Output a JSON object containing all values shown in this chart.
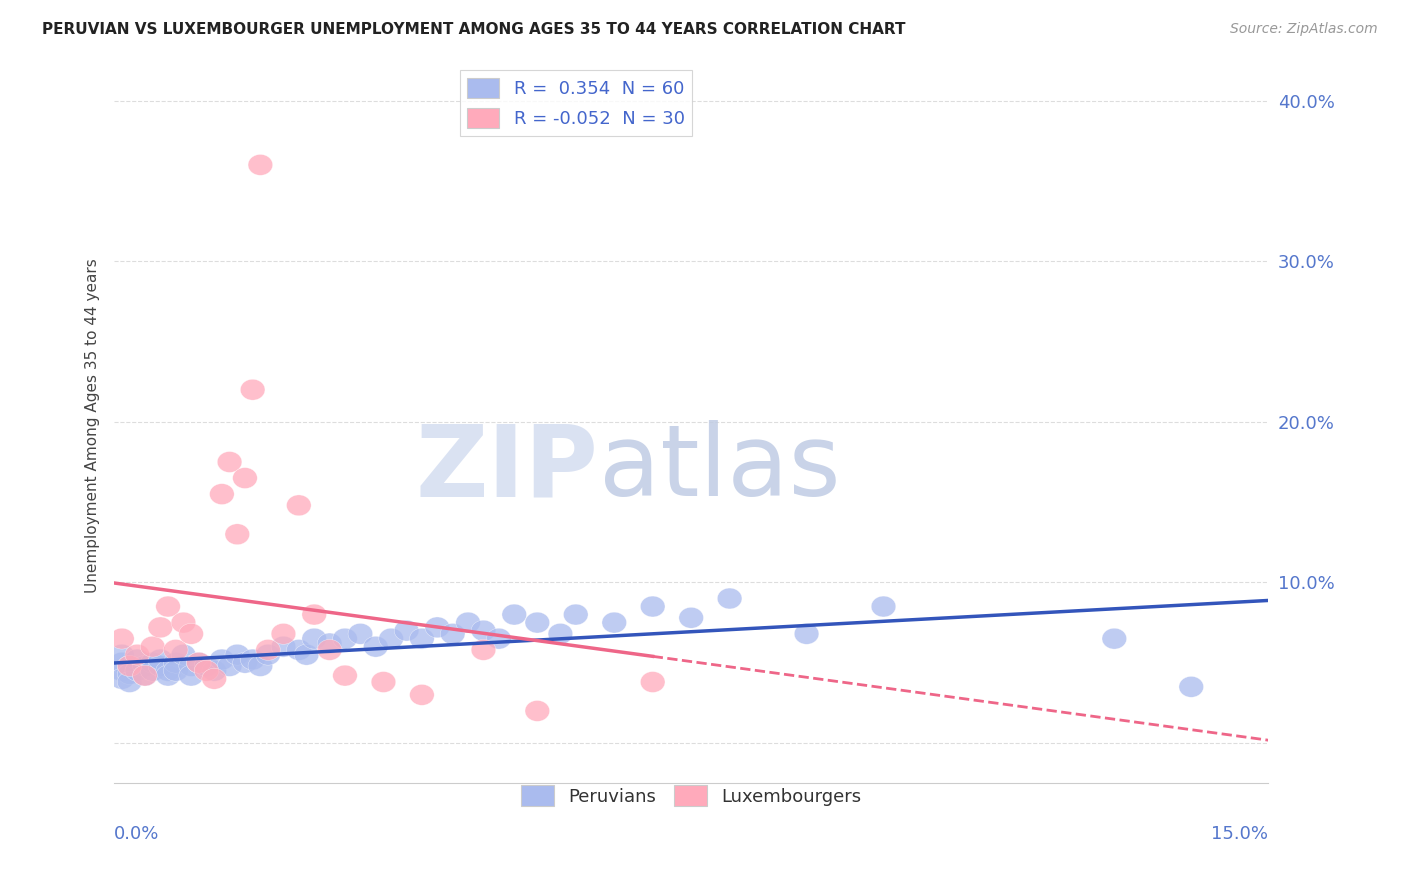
{
  "title": "PERUVIAN VS LUXEMBOURGER UNEMPLOYMENT AMONG AGES 35 TO 44 YEARS CORRELATION CHART",
  "source": "Source: ZipAtlas.com",
  "ylabel": "Unemployment Among Ages 35 to 44 years",
  "yticks": [
    0.0,
    0.1,
    0.2,
    0.3,
    0.4
  ],
  "ytick_labels": [
    "",
    "10.0%",
    "20.0%",
    "30.0%",
    "40.0%"
  ],
  "xlim": [
    0.0,
    0.15
  ],
  "ylim": [
    -0.025,
    0.42
  ],
  "legend_entries": [
    {
      "label": "R =  0.354  N = 60",
      "color": "#aabbee"
    },
    {
      "label": "R = -0.052  N = 30",
      "color": "#ffaabb"
    }
  ],
  "legend_bottom": [
    "Peruvians",
    "Luxembourgers"
  ],
  "peruvian_color": "#aabbee",
  "luxembourger_color": "#ffaabb",
  "trend_peruvian_color": "#3355bb",
  "trend_luxembourger_color": "#ee6688",
  "watermark_zip": "ZIP",
  "watermark_atlas": "atlas",
  "watermark_color_zip": "#d0d8ee",
  "watermark_color_atlas": "#c8d4e8",
  "background_color": "#ffffff",
  "grid_color": "#dddddd",
  "peruvian_points": [
    [
      0.001,
      0.045
    ],
    [
      0.001,
      0.05
    ],
    [
      0.001,
      0.04
    ],
    [
      0.001,
      0.055
    ],
    [
      0.002,
      0.048
    ],
    [
      0.002,
      0.043
    ],
    [
      0.002,
      0.038
    ],
    [
      0.003,
      0.052
    ],
    [
      0.003,
      0.045
    ],
    [
      0.004,
      0.048
    ],
    [
      0.004,
      0.042
    ],
    [
      0.005,
      0.05
    ],
    [
      0.005,
      0.045
    ],
    [
      0.006,
      0.048
    ],
    [
      0.006,
      0.052
    ],
    [
      0.007,
      0.045
    ],
    [
      0.007,
      0.042
    ],
    [
      0.008,
      0.05
    ],
    [
      0.008,
      0.045
    ],
    [
      0.009,
      0.055
    ],
    [
      0.01,
      0.048
    ],
    [
      0.01,
      0.042
    ],
    [
      0.011,
      0.05
    ],
    [
      0.012,
      0.048
    ],
    [
      0.013,
      0.045
    ],
    [
      0.014,
      0.052
    ],
    [
      0.015,
      0.048
    ],
    [
      0.016,
      0.055
    ],
    [
      0.017,
      0.05
    ],
    [
      0.018,
      0.052
    ],
    [
      0.019,
      0.048
    ],
    [
      0.02,
      0.055
    ],
    [
      0.022,
      0.06
    ],
    [
      0.024,
      0.058
    ],
    [
      0.025,
      0.055
    ],
    [
      0.026,
      0.065
    ],
    [
      0.028,
      0.062
    ],
    [
      0.03,
      0.065
    ],
    [
      0.032,
      0.068
    ],
    [
      0.034,
      0.06
    ],
    [
      0.036,
      0.065
    ],
    [
      0.038,
      0.07
    ],
    [
      0.04,
      0.065
    ],
    [
      0.042,
      0.072
    ],
    [
      0.044,
      0.068
    ],
    [
      0.046,
      0.075
    ],
    [
      0.048,
      0.07
    ],
    [
      0.05,
      0.065
    ],
    [
      0.052,
      0.08
    ],
    [
      0.055,
      0.075
    ],
    [
      0.058,
      0.068
    ],
    [
      0.06,
      0.08
    ],
    [
      0.065,
      0.075
    ],
    [
      0.07,
      0.085
    ],
    [
      0.075,
      0.078
    ],
    [
      0.08,
      0.09
    ],
    [
      0.09,
      0.068
    ],
    [
      0.1,
      0.085
    ],
    [
      0.13,
      0.065
    ],
    [
      0.14,
      0.035
    ]
  ],
  "luxembourger_points": [
    [
      0.001,
      0.065
    ],
    [
      0.002,
      0.048
    ],
    [
      0.003,
      0.055
    ],
    [
      0.004,
      0.042
    ],
    [
      0.005,
      0.06
    ],
    [
      0.006,
      0.072
    ],
    [
      0.007,
      0.085
    ],
    [
      0.008,
      0.058
    ],
    [
      0.009,
      0.075
    ],
    [
      0.01,
      0.068
    ],
    [
      0.011,
      0.05
    ],
    [
      0.012,
      0.045
    ],
    [
      0.013,
      0.04
    ],
    [
      0.014,
      0.155
    ],
    [
      0.015,
      0.175
    ],
    [
      0.016,
      0.13
    ],
    [
      0.017,
      0.165
    ],
    [
      0.018,
      0.22
    ],
    [
      0.019,
      0.36
    ],
    [
      0.02,
      0.058
    ],
    [
      0.022,
      0.068
    ],
    [
      0.024,
      0.148
    ],
    [
      0.026,
      0.08
    ],
    [
      0.028,
      0.058
    ],
    [
      0.03,
      0.042
    ],
    [
      0.035,
      0.038
    ],
    [
      0.04,
      0.03
    ],
    [
      0.048,
      0.058
    ],
    [
      0.055,
      0.02
    ],
    [
      0.07,
      0.038
    ]
  ]
}
